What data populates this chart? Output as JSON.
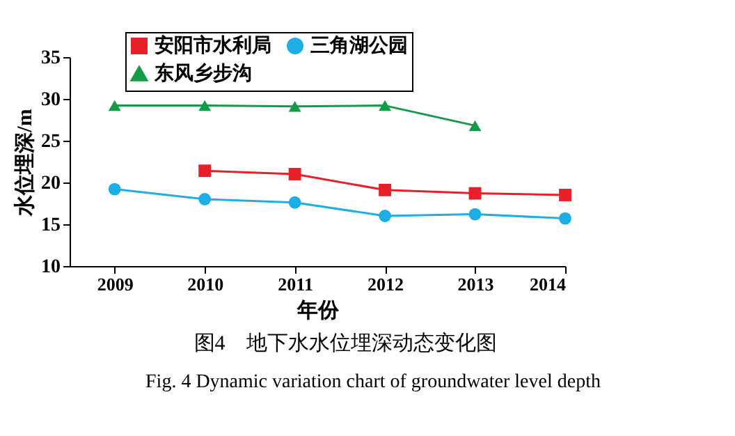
{
  "chart_data": {
    "type": "line",
    "xlabel": "年份",
    "ylabel": "水位埋深/m",
    "x": [
      2009,
      2010,
      2011,
      2012,
      2013,
      2014
    ],
    "series": [
      {
        "name": "安阳市水利局",
        "color": "#e8202a",
        "marker": "square",
        "values": [
          null,
          21.4,
          21.0,
          19.1,
          18.7,
          18.5
        ]
      },
      {
        "name": "三角湖公园",
        "color": "#1eaee6",
        "marker": "circle",
        "values": [
          19.2,
          18.0,
          17.6,
          16.0,
          16.2,
          15.7
        ]
      },
      {
        "name": "东风乡步沟",
        "color": "#159a48",
        "marker": "triangle",
        "values": [
          29.2,
          29.2,
          29.1,
          29.2,
          26.8,
          null
        ]
      }
    ],
    "xlim": [
      2008.5,
      2014
    ],
    "xticks": [
      2009,
      2010,
      2011,
      2012,
      2013,
      2014
    ],
    "ylim": [
      10,
      35
    ],
    "yticks": [
      10,
      15,
      20,
      25,
      30,
      35
    ],
    "grid": false,
    "legend": "top",
    "annotations": [
      "图4　地下水水位埋深动态变化图",
      "Fig. 4 Dynamic variation chart of groundwater level depth"
    ]
  }
}
